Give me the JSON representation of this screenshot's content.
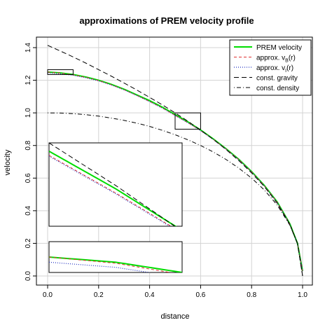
{
  "chart_data": {
    "type": "line",
    "title": "approximations of PREM velocity profile",
    "xlabel": "distance",
    "ylabel": "velocity",
    "xlim": [
      0.0,
      1.0
    ],
    "ylim": [
      0.0,
      1.45
    ],
    "xticks": [
      "0.0",
      "0.2",
      "0.4",
      "0.6",
      "0.8",
      "1.0"
    ],
    "yticks": [
      "0.0",
      "0.2",
      "0.4",
      "0.6",
      "0.8",
      "1.0",
      "1.2",
      "1.4"
    ],
    "grid": true,
    "legend_position": "top-right",
    "x": [
      0.0,
      0.05,
      0.1,
      0.15,
      0.2,
      0.25,
      0.3,
      0.35,
      0.4,
      0.45,
      0.5,
      0.55,
      0.6,
      0.65,
      0.7,
      0.75,
      0.8,
      0.85,
      0.9,
      0.95,
      0.98,
      1.0
    ],
    "series": [
      {
        "name": "PREM velocity",
        "color": "#00dd00",
        "style": "solid",
        "values": [
          1.25,
          1.245,
          1.235,
          1.22,
          1.2,
          1.175,
          1.145,
          1.11,
          1.075,
          1.035,
          0.99,
          0.945,
          0.895,
          0.84,
          0.78,
          0.715,
          0.64,
          0.555,
          0.455,
          0.32,
          0.2,
          0.03
        ]
      },
      {
        "name_main": "approx. v",
        "name_sub": "B",
        "name_tail": "(r)",
        "color": "#e03030",
        "style": "dash",
        "values": [
          1.25,
          1.244,
          1.233,
          1.218,
          1.198,
          1.172,
          1.142,
          1.107,
          1.07,
          1.03,
          0.985,
          0.94,
          0.892,
          0.838,
          0.778,
          0.713,
          0.638,
          0.553,
          0.453,
          0.318,
          0.199,
          0.03
        ]
      },
      {
        "name_main": "approx. v",
        "name_sub": "I",
        "name_tail": "(r)",
        "color": "#2030c0",
        "style": "dot",
        "values": [
          1.245,
          1.24,
          1.23,
          1.215,
          1.196,
          1.171,
          1.141,
          1.106,
          1.069,
          1.029,
          0.984,
          0.939,
          0.891,
          0.837,
          0.777,
          0.712,
          0.637,
          0.552,
          0.452,
          0.317,
          0.198,
          0.03
        ]
      },
      {
        "name": "const. gravity",
        "color": "#000000",
        "style": "longdash",
        "values": [
          1.414,
          1.379,
          1.343,
          1.305,
          1.265,
          1.225,
          1.183,
          1.14,
          1.095,
          1.049,
          1.0,
          0.949,
          0.894,
          0.837,
          0.775,
          0.707,
          0.632,
          0.548,
          0.447,
          0.316,
          0.2,
          0.0
        ]
      },
      {
        "name": "const. density",
        "color": "#000000",
        "style": "dotdash",
        "values": [
          1.0,
          0.999,
          0.995,
          0.989,
          0.98,
          0.968,
          0.954,
          0.937,
          0.917,
          0.893,
          0.866,
          0.835,
          0.8,
          0.76,
          0.714,
          0.661,
          0.6,
          0.527,
          0.436,
          0.312,
          0.199,
          0.0
        ]
      }
    ],
    "zoom_boxes": [
      {
        "xrange": [
          0.0,
          0.1
        ],
        "yrange": [
          1.235,
          1.265
        ]
      },
      {
        "xrange": [
          0.5,
          0.6
        ],
        "yrange": [
          0.9,
          1.0
        ]
      }
    ]
  }
}
